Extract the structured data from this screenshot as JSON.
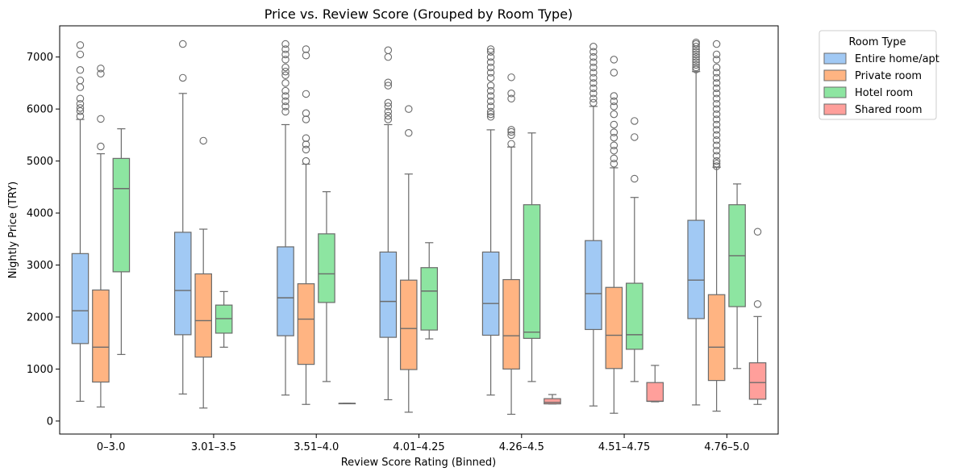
{
  "chart_data": {
    "type": "box",
    "title": "Price vs. Review Score (Grouped by Room Type)",
    "xlabel": "Review Score Rating (Binned)",
    "ylabel": "Nightly Price (TRY)",
    "ylim": [
      -250,
      7600
    ],
    "yticks": [
      0,
      1000,
      2000,
      3000,
      4000,
      5000,
      6000,
      7000
    ],
    "grid": false,
    "legend": {
      "title": "Room Type",
      "placement": "outside-top-right"
    },
    "categories": [
      "0–3.0",
      "3.01–3.5",
      "3.51–4.0",
      "4.01–4.25",
      "4.26–4.5",
      "4.51–4.75",
      "4.76–5.0"
    ],
    "series": [
      {
        "name": "Entire home/apt",
        "color": "#a1c9f4",
        "boxes": [
          {
            "whislo": 380,
            "q1": 1490,
            "med": 2120,
            "q3": 3220,
            "whishi": 5800,
            "fliers": [
              5860,
              5960,
              6020,
              6100,
              6200,
              6420,
              6550,
              6750,
              7050,
              7230
            ]
          },
          {
            "whislo": 520,
            "q1": 1660,
            "med": 2510,
            "q3": 3630,
            "whishi": 6300,
            "fliers": [
              6600,
              7250
            ]
          },
          {
            "whislo": 500,
            "q1": 1640,
            "med": 2370,
            "q3": 3350,
            "whishi": 5700,
            "fliers": [
              5950,
              6050,
              6150,
              6250,
              6350,
              6500,
              6650,
              6720,
              6800,
              6950,
              7050,
              7150,
              7250
            ]
          },
          {
            "whislo": 410,
            "q1": 1610,
            "med": 2300,
            "q3": 3250,
            "whishi": 5700,
            "fliers": [
              5800,
              5870,
              5950,
              6050,
              6120,
              6450,
              6510,
              7000,
              7130
            ]
          },
          {
            "whislo": 500,
            "q1": 1650,
            "med": 2260,
            "q3": 3250,
            "whishi": 5600,
            "fliers": [
              5850,
              5900,
              5950,
              6050,
              6150,
              6250,
              6350,
              6450,
              6600,
              6700,
              6800,
              6900,
              7000,
              7100,
              7150
            ]
          },
          {
            "whislo": 290,
            "q1": 1760,
            "med": 2450,
            "q3": 3470,
            "whishi": 6050,
            "fliers": [
              6120,
              6200,
              6300,
              6400,
              6500,
              6600,
              6700,
              6800,
              6900,
              7000,
              7100,
              7200
            ]
          },
          {
            "whislo": 310,
            "q1": 1970,
            "med": 2710,
            "q3": 3860,
            "whishi": 6720,
            "fliers": [
              6760,
              6800,
              6850,
              6900,
              6950,
              7000,
              7050,
              7100,
              7150,
              7200,
              7250,
              7280
            ]
          }
        ]
      },
      {
        "name": "Private room",
        "color": "#ffb482",
        "boxes": [
          {
            "whislo": 270,
            "q1": 750,
            "med": 1420,
            "q3": 2520,
            "whishi": 5140,
            "fliers": [
              5280,
              5810,
              6680,
              6780
            ]
          },
          {
            "whislo": 250,
            "q1": 1230,
            "med": 1930,
            "q3": 2830,
            "whishi": 3690,
            "fliers": [
              5390
            ]
          },
          {
            "whislo": 320,
            "q1": 1090,
            "med": 1960,
            "q3": 2640,
            "whishi": 4940,
            "fliers": [
              5000,
              5220,
              5320,
              5440,
              5800,
              5920,
              6290,
              7030,
              7150
            ]
          },
          {
            "whislo": 170,
            "q1": 990,
            "med": 1780,
            "q3": 2710,
            "whishi": 4750,
            "fliers": [
              5540,
              6000
            ]
          },
          {
            "whislo": 130,
            "q1": 1000,
            "med": 1640,
            "q3": 2720,
            "whishi": 5270,
            "fliers": [
              5330,
              5500,
              5560,
              5600,
              6200,
              6300,
              6610
            ]
          },
          {
            "whislo": 150,
            "q1": 1010,
            "med": 1650,
            "q3": 2570,
            "whishi": 4870,
            "fliers": [
              4950,
              5050,
              5200,
              5300,
              5450,
              5550,
              5700,
              5900,
              6050,
              6150,
              6250,
              6700,
              6950
            ]
          },
          {
            "whislo": 190,
            "q1": 780,
            "med": 1420,
            "q3": 2430,
            "whishi": 4880,
            "fliers": [
              4900,
              4950,
              5000,
              5100,
              5200,
              5300,
              5400,
              5500,
              5600,
              5700,
              5800,
              5900,
              6000,
              6100,
              6200,
              6300,
              6400,
              6500,
              6600,
              6700,
              6800,
              6950,
              7050,
              7250
            ]
          }
        ]
      },
      {
        "name": "Hotel room",
        "color": "#8de5a1",
        "boxes": [
          {
            "whislo": 1280,
            "q1": 2870,
            "med": 4470,
            "q3": 5050,
            "whishi": 5620,
            "fliers": []
          },
          {
            "whislo": 1420,
            "q1": 1690,
            "med": 1970,
            "q3": 2230,
            "whishi": 2490,
            "fliers": []
          },
          {
            "whislo": 760,
            "q1": 2280,
            "med": 2830,
            "q3": 3600,
            "whishi": 4410,
            "fliers": []
          },
          {
            "whislo": 1580,
            "q1": 1750,
            "med": 2500,
            "q3": 2950,
            "whishi": 3430,
            "fliers": []
          },
          {
            "whislo": 760,
            "q1": 1590,
            "med": 1710,
            "q3": 4160,
            "whishi": 5540,
            "fliers": []
          },
          {
            "whislo": 760,
            "q1": 1380,
            "med": 1660,
            "q3": 2650,
            "whishi": 4300,
            "fliers": [
              4660,
              5460,
              5770
            ]
          },
          {
            "whislo": 1010,
            "q1": 2200,
            "med": 3180,
            "q3": 4160,
            "whishi": 4560,
            "fliers": []
          }
        ]
      },
      {
        "name": "Shared room",
        "color": "#ff9f9b",
        "boxes": [
          null,
          null,
          {
            "whislo": 340,
            "q1": 340,
            "med": 340,
            "q3": 340,
            "whishi": 340,
            "fliers": []
          },
          null,
          {
            "whislo": 330,
            "q1": 330,
            "med": 360,
            "q3": 430,
            "whishi": 510,
            "fliers": []
          },
          {
            "whislo": 370,
            "q1": 380,
            "med": 380,
            "q3": 740,
            "whishi": 1070,
            "fliers": []
          },
          {
            "whislo": 320,
            "q1": 420,
            "med": 740,
            "q3": 1120,
            "whishi": 2010,
            "fliers": [
              2250,
              3640
            ]
          }
        ]
      }
    ]
  }
}
